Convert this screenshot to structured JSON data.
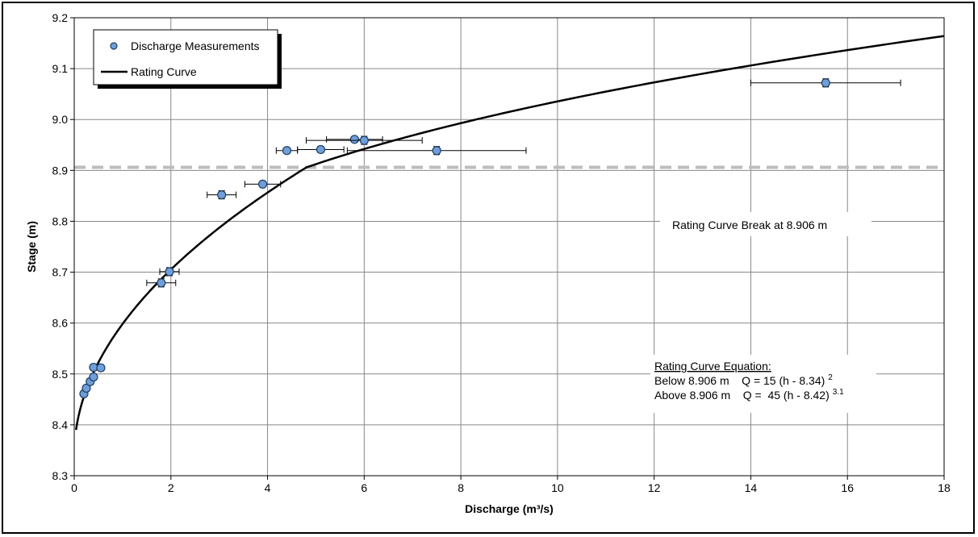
{
  "chart_data": {
    "type": "scatter",
    "xlabel": "Discharge (m³/s)",
    "ylabel": "Stage (m)",
    "xlim": [
      0,
      18
    ],
    "ylim": [
      8.3,
      9.2
    ],
    "x_ticks": [
      "0",
      "2",
      "4",
      "6",
      "8",
      "10",
      "12",
      "14",
      "16",
      "18"
    ],
    "y_ticks": [
      "8.3",
      "8.4",
      "8.5",
      "8.6",
      "8.7",
      "8.8",
      "8.9",
      "9.0",
      "9.1",
      "9.2"
    ],
    "grid": true,
    "legend": {
      "placement": "top-left",
      "entries": [
        {
          "label": "Discharge Measurements",
          "marker": "circle"
        },
        {
          "label": "Rating Curve",
          "marker": "line"
        }
      ]
    },
    "series": [
      {
        "name": "Discharge Measurements",
        "type": "scatter",
        "points": [
          {
            "x": 0.2,
            "y": 8.461,
            "x_err": 0.02,
            "y_err": 0.006
          },
          {
            "x": 0.25,
            "y": 8.472,
            "x_err": 0.03,
            "y_err": 0.006
          },
          {
            "x": 0.33,
            "y": 8.485,
            "x_err": 0.03,
            "y_err": 0.006
          },
          {
            "x": 0.4,
            "y": 8.494,
            "x_err": 0.04,
            "y_err": 0.006
          },
          {
            "x": 0.4,
            "y": 8.513,
            "x_err": 0.04,
            "y_err": 0.006
          },
          {
            "x": 0.55,
            "y": 8.512,
            "x_err": 0.05,
            "y_err": 0.006
          },
          {
            "x": 1.8,
            "y": 8.679,
            "x_err": 0.3,
            "y_err": 0.008
          },
          {
            "x": 1.97,
            "y": 8.701,
            "x_err": 0.2,
            "y_err": 0.008
          },
          {
            "x": 3.05,
            "y": 8.852,
            "x_err": 0.3,
            "y_err": 0.008
          },
          {
            "x": 3.9,
            "y": 8.873,
            "x_err": 0.37,
            "y_err": 0.005
          },
          {
            "x": 4.4,
            "y": 8.939,
            "x_err": 0.22,
            "y_err": 0.006
          },
          {
            "x": 5.1,
            "y": 8.941,
            "x_err": 0.48,
            "y_err": 0.006
          },
          {
            "x": 5.8,
            "y": 8.961,
            "x_err": 0.58,
            "y_err": 0.005
          },
          {
            "x": 6.0,
            "y": 8.959,
            "x_err": 1.2,
            "y_err": 0.008
          },
          {
            "x": 7.5,
            "y": 8.939,
            "x_err": 1.85,
            "y_err": 0.008
          },
          {
            "x": 15.55,
            "y": 9.072,
            "x_err": 1.55,
            "y_err": 0.008
          }
        ]
      },
      {
        "name": "Rating Curve",
        "type": "line",
        "equations": {
          "below": {
            "coef": 15,
            "h0": 8.34,
            "exp": 2
          },
          "above": {
            "coef": 45,
            "h0": 8.42,
            "exp": 3.1
          }
        },
        "break_stage": 8.906,
        "y_range": [
          8.39,
          9.164
        ]
      }
    ],
    "reference_line": {
      "y": 8.906,
      "style": "dashed",
      "color": "#bdbdbd"
    },
    "annotations": {
      "break_label": "Rating Curve Break at 8.906 m",
      "equation_title": "Rating Curve Equation:",
      "eq_below_prefix": "Below 8.906 m    Q = 15 (h - 8.34)",
      "eq_below_sup": "2",
      "eq_above_prefix": "Above 8.906 m    Q =  45 (h - 8.42)",
      "eq_above_sup": "3.1"
    },
    "colors": {
      "marker_fill": "#6f9fd8",
      "marker_stroke": "#1f3d66",
      "curve": "#000000",
      "grid": "#888888"
    }
  }
}
